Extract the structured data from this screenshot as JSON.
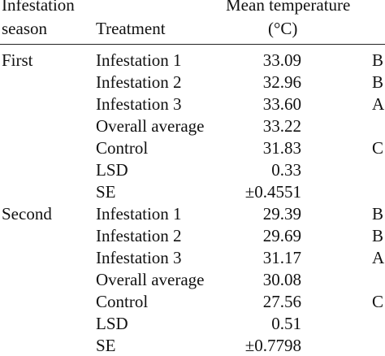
{
  "table": {
    "headers": {
      "season_line1": "Infestation",
      "season_line2": "season",
      "treatment": "Treatment",
      "temp_line1": "Mean temperature",
      "temp_line2": "(°C)"
    },
    "seasons": [
      {
        "season": "First",
        "rows": [
          {
            "treatment": "Infestation 1",
            "temp": "33.09",
            "group": "B"
          },
          {
            "treatment": "Infestation 2",
            "temp": "32.96",
            "group": "B"
          },
          {
            "treatment": "Infestation 3",
            "temp": "33.60",
            "group": "A"
          },
          {
            "treatment": "Overall average",
            "temp": "33.22",
            "group": ""
          },
          {
            "treatment": "Control",
            "temp": "31.83",
            "group": "C"
          },
          {
            "treatment": "LSD",
            "temp": "0.33",
            "group": ""
          },
          {
            "treatment": "SE",
            "temp": "±0.4551",
            "group": ""
          }
        ]
      },
      {
        "season": "Second",
        "rows": [
          {
            "treatment": "Infestation 1",
            "temp": "29.39",
            "group": "B"
          },
          {
            "treatment": "Infestation 2",
            "temp": "29.69",
            "group": "B"
          },
          {
            "treatment": "Infestation 3",
            "temp": "31.17",
            "group": "A"
          },
          {
            "treatment": "Overall average",
            "temp": "30.08",
            "group": ""
          },
          {
            "treatment": "Control",
            "temp": "27.56",
            "group": "C"
          },
          {
            "treatment": "LSD",
            "temp": "0.51",
            "group": ""
          },
          {
            "treatment": "SE",
            "temp": "±0.7798",
            "group": ""
          }
        ]
      }
    ]
  }
}
